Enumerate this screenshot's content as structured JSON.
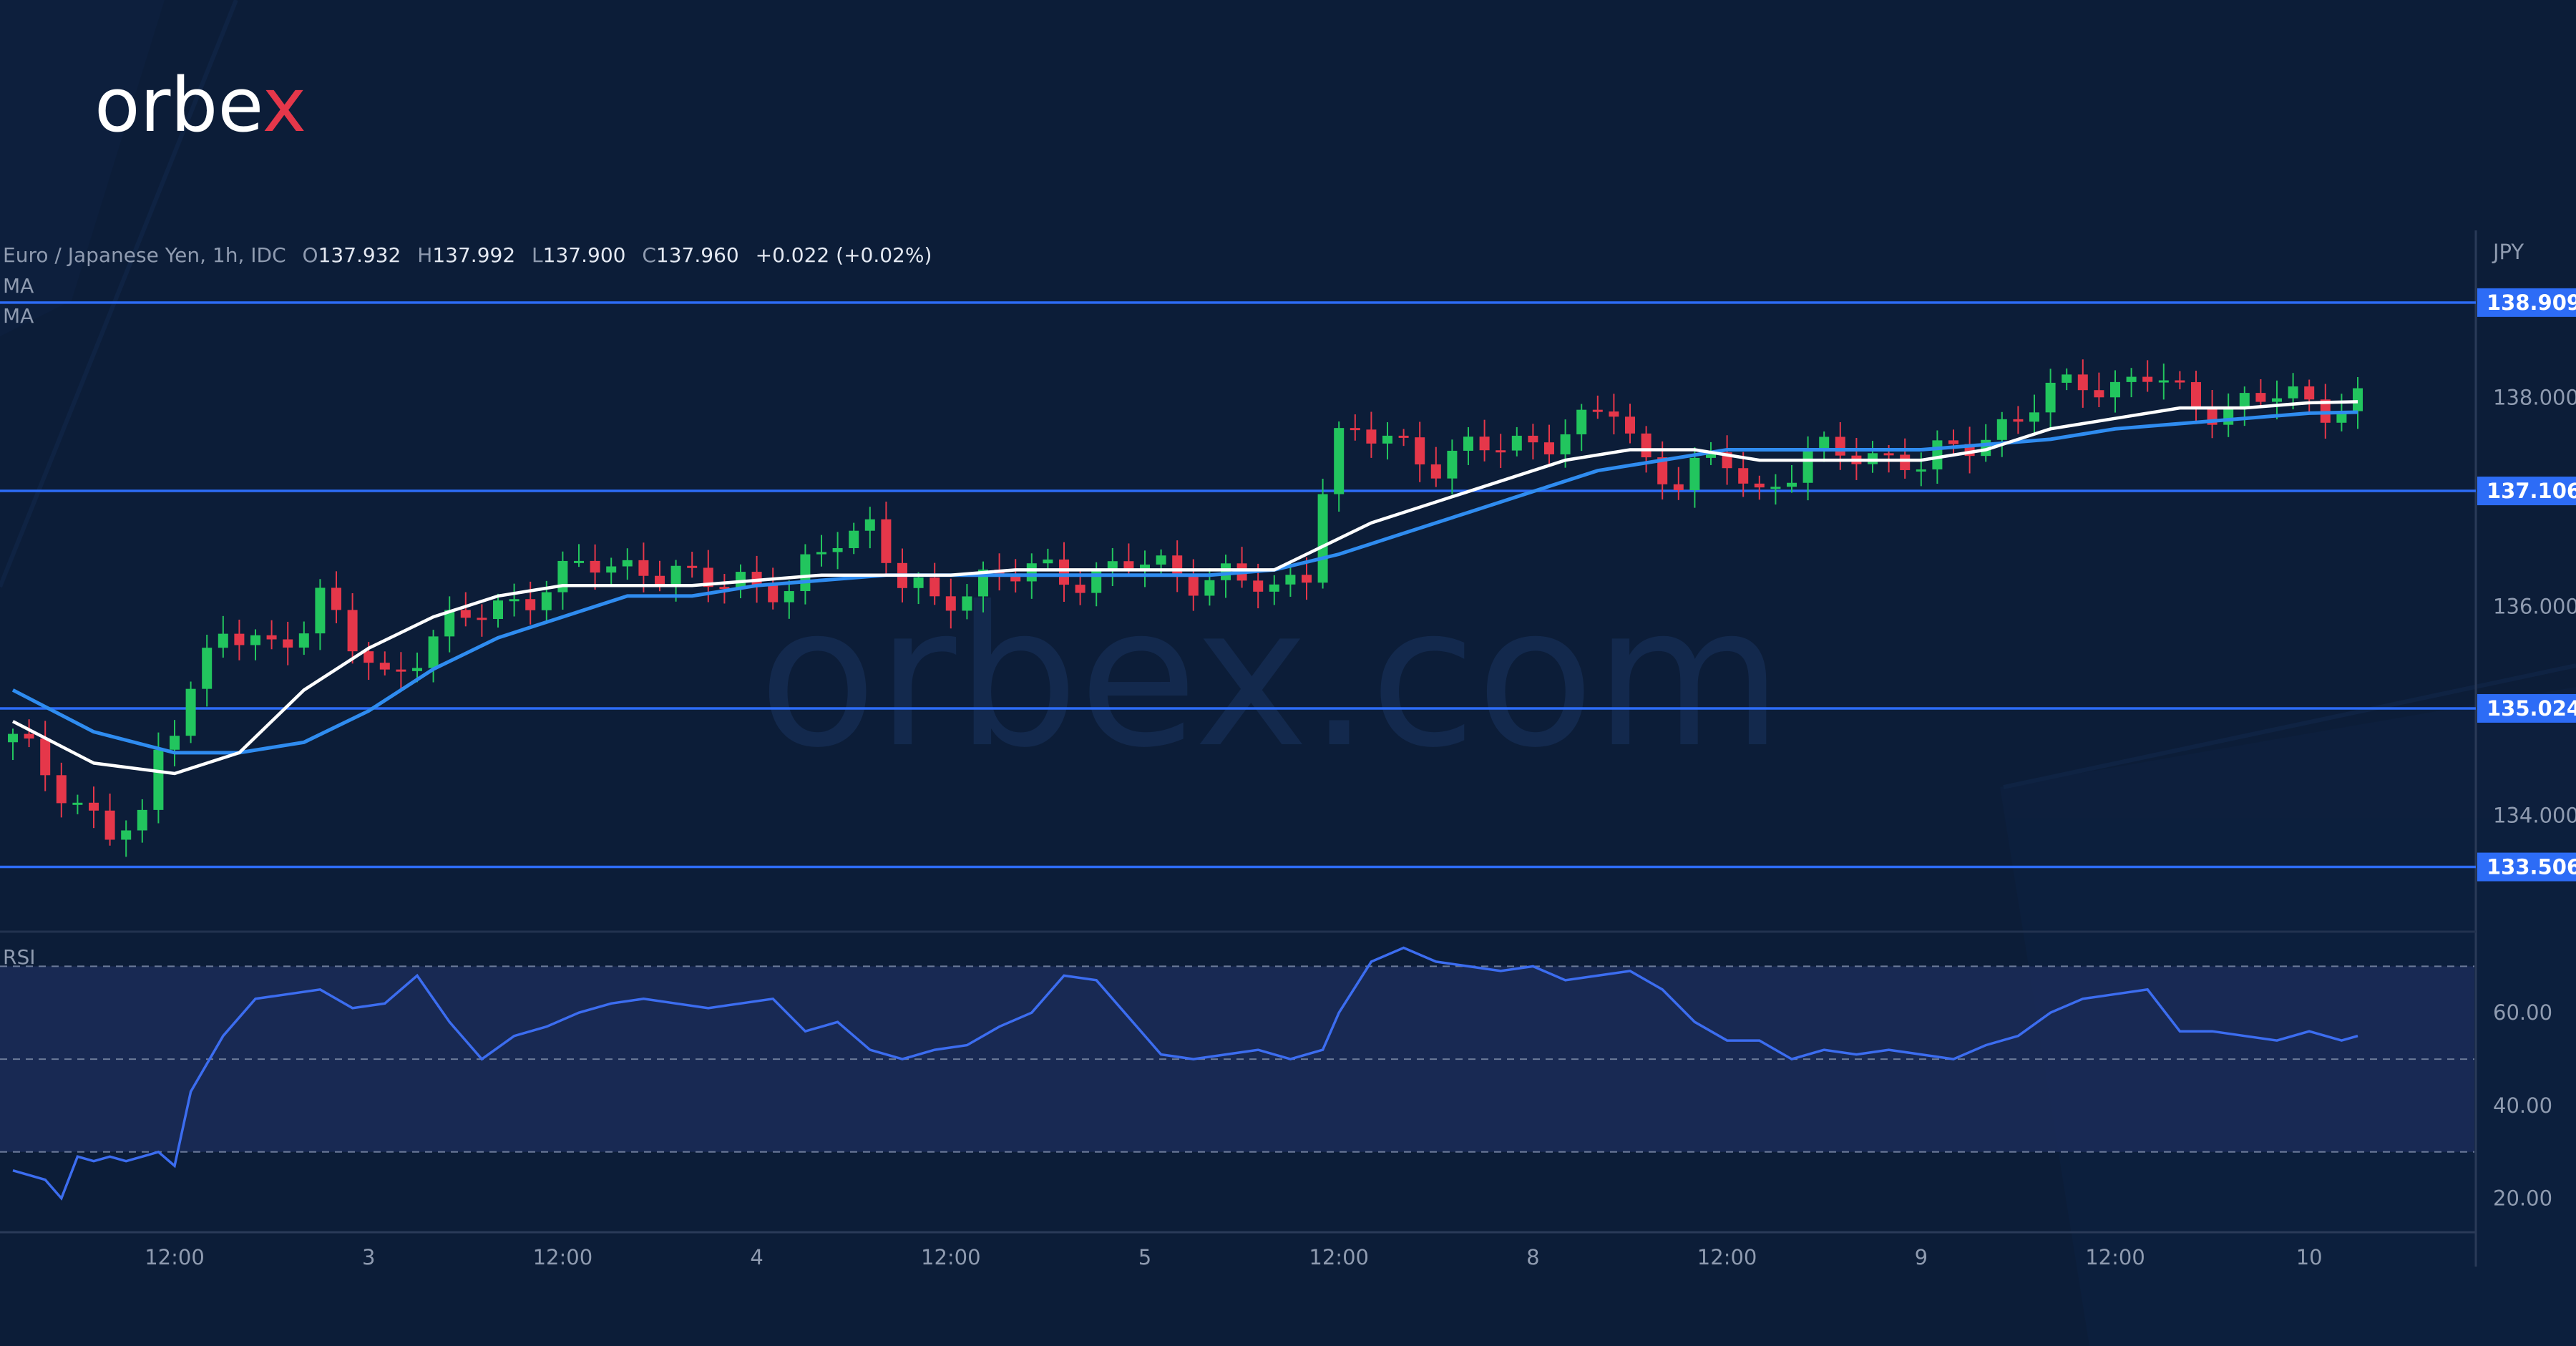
{
  "brand": {
    "logo_left": "orbe",
    "logo_x": "x",
    "watermark": "orbex.com"
  },
  "legend": {
    "symbol": "Euro / Japanese Yen, 1h, IDC",
    "o_label": "O",
    "o": "137.932",
    "h_label": "H",
    "h": "137.992",
    "l_label": "L",
    "l": "137.900",
    "c_label": "C",
    "c": "137.960",
    "change": "+0.022 (+0.02%)",
    "ma1": "MA",
    "ma2": "MA"
  },
  "colors": {
    "background": "#0c1d38",
    "bull": "#22c55e",
    "bear": "#e5374a",
    "level": "#2d6cf6",
    "ma_fast": "#ffffff",
    "ma_slow": "#2f8cf0",
    "rsi": "#3c6df0",
    "rsi_band": "#1c2d5c"
  },
  "chart_data": {
    "type": "candlestick",
    "title": "Euro / Japanese Yen, 1h, IDC",
    "currency": "JPY",
    "price_axis": {
      "ticks": [
        "138.000",
        "136.000",
        "134.000"
      ],
      "tick_values": [
        138,
        136,
        134
      ],
      "range": [
        132.9,
        139.6
      ]
    },
    "levels": [
      {
        "label": "138.909",
        "value": 138.909
      },
      {
        "label": "137.106",
        "value": 137.106
      },
      {
        "label": "135.024",
        "value": 135.024
      },
      {
        "label": "133.506",
        "value": 133.506
      }
    ],
    "x_labels": [
      "12:00",
      "3",
      "12:00",
      "4",
      "12:00",
      "5",
      "12:00",
      "8",
      "12:00",
      "9",
      "12:00",
      "10"
    ],
    "x_label_bars": [
      10,
      22,
      34,
      46,
      58,
      70,
      82,
      94,
      106,
      118,
      130,
      142
    ],
    "bars_count": 146,
    "price_path": [
      [
        0,
        134.7
      ],
      [
        3,
        134.3
      ],
      [
        6,
        133.8
      ],
      [
        8,
        133.9
      ],
      [
        9,
        134.6
      ],
      [
        11,
        135.3
      ],
      [
        13,
        135.7
      ],
      [
        16,
        135.6
      ],
      [
        18,
        135.9
      ],
      [
        19,
        136.1
      ],
      [
        21,
        135.6
      ],
      [
        23,
        135.3
      ],
      [
        25,
        135.6
      ],
      [
        27,
        135.8
      ],
      [
        30,
        136.0
      ],
      [
        33,
        136.2
      ],
      [
        36,
        136.4
      ],
      [
        39,
        136.4
      ],
      [
        42,
        136.2
      ],
      [
        45,
        136.3
      ],
      [
        48,
        136.1
      ],
      [
        51,
        136.7
      ],
      [
        53,
        136.8
      ],
      [
        55,
        136.2
      ],
      [
        57,
        136.0
      ],
      [
        60,
        136.3
      ],
      [
        63,
        136.3
      ],
      [
        66,
        136.3
      ],
      [
        69,
        136.4
      ],
      [
        72,
        136.3
      ],
      [
        75,
        136.3
      ],
      [
        78,
        136.1
      ],
      [
        80,
        136.4
      ],
      [
        81,
        137.2
      ],
      [
        82,
        137.6
      ],
      [
        85,
        137.6
      ],
      [
        88,
        137.4
      ],
      [
        91,
        137.5
      ],
      [
        94,
        137.6
      ],
      [
        97,
        137.7
      ],
      [
        99,
        137.9
      ],
      [
        101,
        137.4
      ],
      [
        103,
        137.2
      ],
      [
        106,
        137.4
      ],
      [
        108,
        137.1
      ],
      [
        111,
        137.4
      ],
      [
        114,
        137.5
      ],
      [
        117,
        137.4
      ],
      [
        118,
        137.3
      ],
      [
        121,
        137.6
      ],
      [
        124,
        137.8
      ],
      [
        126,
        138.0
      ],
      [
        128,
        138.2
      ],
      [
        130,
        138.1
      ],
      [
        132,
        138.2
      ],
      [
        134,
        138.0
      ],
      [
        137,
        137.9
      ],
      [
        140,
        138.0
      ],
      [
        143,
        137.95
      ],
      [
        145,
        137.96
      ]
    ],
    "ma_fast_path": [
      [
        0,
        134.9
      ],
      [
        5,
        134.5
      ],
      [
        10,
        134.4
      ],
      [
        14,
        134.6
      ],
      [
        18,
        135.2
      ],
      [
        22,
        135.6
      ],
      [
        26,
        135.9
      ],
      [
        30,
        136.1
      ],
      [
        34,
        136.2
      ],
      [
        38,
        136.2
      ],
      [
        42,
        136.2
      ],
      [
        46,
        136.25
      ],
      [
        50,
        136.3
      ],
      [
        54,
        136.3
      ],
      [
        58,
        136.3
      ],
      [
        62,
        136.35
      ],
      [
        66,
        136.35
      ],
      [
        70,
        136.35
      ],
      [
        74,
        136.35
      ],
      [
        78,
        136.35
      ],
      [
        80,
        136.5
      ],
      [
        84,
        136.8
      ],
      [
        88,
        137.0
      ],
      [
        92,
        137.2
      ],
      [
        96,
        137.4
      ],
      [
        100,
        137.5
      ],
      [
        104,
        137.5
      ],
      [
        108,
        137.4
      ],
      [
        112,
        137.4
      ],
      [
        116,
        137.4
      ],
      [
        118,
        137.4
      ],
      [
        122,
        137.5
      ],
      [
        126,
        137.7
      ],
      [
        130,
        137.8
      ],
      [
        134,
        137.9
      ],
      [
        138,
        137.9
      ],
      [
        142,
        137.95
      ],
      [
        145,
        137.96
      ]
    ],
    "ma_slow_path": [
      [
        0,
        135.2
      ],
      [
        5,
        134.8
      ],
      [
        10,
        134.6
      ],
      [
        14,
        134.6
      ],
      [
        18,
        134.7
      ],
      [
        22,
        135.0
      ],
      [
        26,
        135.4
      ],
      [
        30,
        135.7
      ],
      [
        34,
        135.9
      ],
      [
        38,
        136.1
      ],
      [
        42,
        136.1
      ],
      [
        46,
        136.2
      ],
      [
        50,
        136.25
      ],
      [
        54,
        136.3
      ],
      [
        58,
        136.3
      ],
      [
        62,
        136.3
      ],
      [
        66,
        136.3
      ],
      [
        70,
        136.3
      ],
      [
        74,
        136.3
      ],
      [
        78,
        136.35
      ],
      [
        82,
        136.5
      ],
      [
        86,
        136.7
      ],
      [
        90,
        136.9
      ],
      [
        94,
        137.1
      ],
      [
        98,
        137.3
      ],
      [
        102,
        137.4
      ],
      [
        106,
        137.5
      ],
      [
        110,
        137.5
      ],
      [
        114,
        137.5
      ],
      [
        118,
        137.5
      ],
      [
        122,
        137.55
      ],
      [
        126,
        137.6
      ],
      [
        130,
        137.7
      ],
      [
        134,
        137.75
      ],
      [
        138,
        137.8
      ],
      [
        142,
        137.85
      ],
      [
        145,
        137.86
      ]
    ],
    "rsi": {
      "label": "RSI",
      "ticks": [
        "60.00",
        "40.00",
        "20.00"
      ],
      "tick_values": [
        60,
        40,
        20
      ],
      "range": [
        13,
        77
      ],
      "band": [
        30,
        70
      ],
      "mid": 50,
      "values": [
        [
          0,
          26
        ],
        [
          2,
          24
        ],
        [
          3,
          20
        ],
        [
          4,
          29
        ],
        [
          5,
          28
        ],
        [
          6,
          29
        ],
        [
          7,
          28
        ],
        [
          8,
          29
        ],
        [
          9,
          30
        ],
        [
          10,
          27
        ],
        [
          11,
          43
        ],
        [
          13,
          55
        ],
        [
          15,
          63
        ],
        [
          17,
          64
        ],
        [
          19,
          65
        ],
        [
          21,
          61
        ],
        [
          23,
          62
        ],
        [
          25,
          68
        ],
        [
          27,
          58
        ],
        [
          29,
          50
        ],
        [
          31,
          55
        ],
        [
          33,
          57
        ],
        [
          35,
          60
        ],
        [
          37,
          62
        ],
        [
          39,
          63
        ],
        [
          41,
          62
        ],
        [
          43,
          61
        ],
        [
          45,
          62
        ],
        [
          47,
          63
        ],
        [
          49,
          56
        ],
        [
          51,
          58
        ],
        [
          53,
          52
        ],
        [
          55,
          50
        ],
        [
          57,
          52
        ],
        [
          59,
          53
        ],
        [
          61,
          57
        ],
        [
          63,
          60
        ],
        [
          65,
          68
        ],
        [
          67,
          67
        ],
        [
          69,
          59
        ],
        [
          71,
          51
        ],
        [
          73,
          50
        ],
        [
          75,
          51
        ],
        [
          77,
          52
        ],
        [
          79,
          50
        ],
        [
          81,
          52
        ],
        [
          82,
          60
        ],
        [
          84,
          71
        ],
        [
          86,
          74
        ],
        [
          88,
          71
        ],
        [
          90,
          70
        ],
        [
          92,
          69
        ],
        [
          94,
          70
        ],
        [
          96,
          67
        ],
        [
          98,
          68
        ],
        [
          100,
          69
        ],
        [
          102,
          65
        ],
        [
          104,
          58
        ],
        [
          106,
          54
        ],
        [
          108,
          54
        ],
        [
          110,
          50
        ],
        [
          112,
          52
        ],
        [
          114,
          51
        ],
        [
          116,
          52
        ],
        [
          118,
          51
        ],
        [
          120,
          50
        ],
        [
          122,
          53
        ],
        [
          124,
          55
        ],
        [
          126,
          60
        ],
        [
          128,
          63
        ],
        [
          130,
          64
        ],
        [
          132,
          65
        ],
        [
          134,
          56
        ],
        [
          136,
          56
        ],
        [
          138,
          55
        ],
        [
          140,
          54
        ],
        [
          142,
          56
        ],
        [
          144,
          54
        ],
        [
          145,
          55
        ]
      ]
    }
  }
}
